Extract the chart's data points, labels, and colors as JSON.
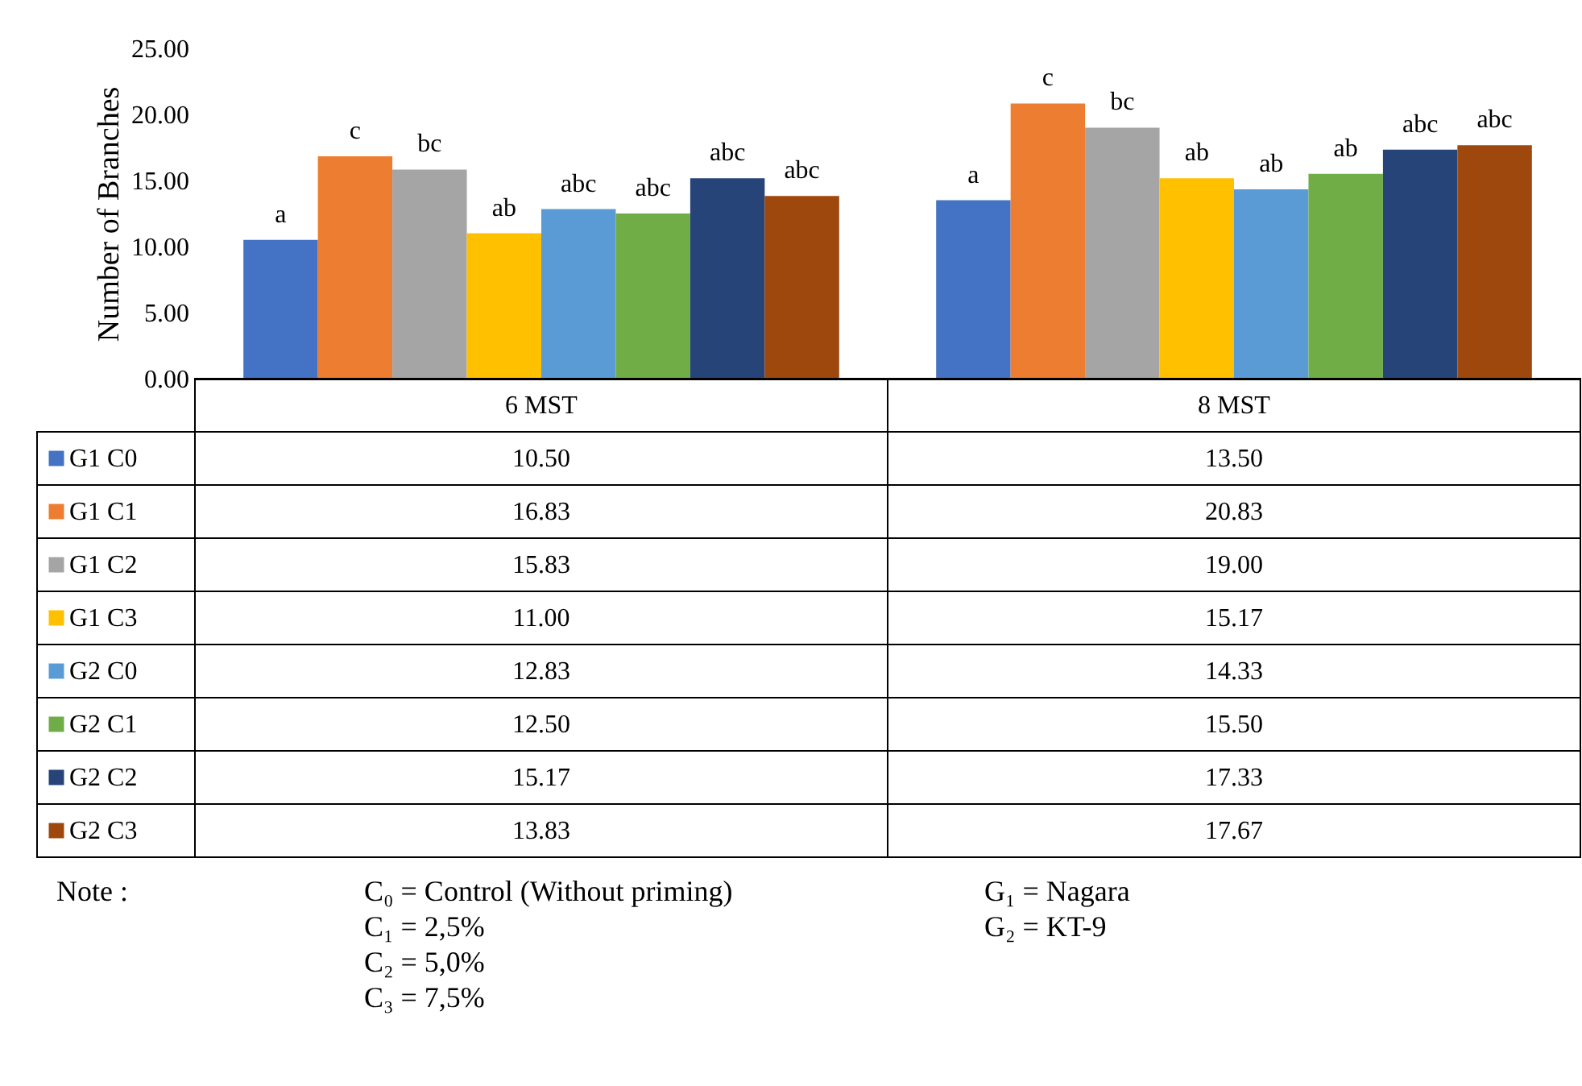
{
  "chart_data": {
    "type": "bar",
    "ylabel": "Number of Branches",
    "categories": [
      "6 MST",
      "8 MST"
    ],
    "series": [
      {
        "name": "G1 C0",
        "color": "#4472c4",
        "values": [
          10.5,
          13.5
        ],
        "value_labels": [
          "10.50",
          "13.50"
        ]
      },
      {
        "name": "G1 C1",
        "color": "#ed7d31",
        "values": [
          16.83,
          20.83
        ],
        "value_labels": [
          "16.83",
          "20.83"
        ]
      },
      {
        "name": "G1 C2",
        "color": "#a5a5a5",
        "values": [
          15.83,
          19.0
        ],
        "value_labels": [
          "15.83",
          "19.00"
        ]
      },
      {
        "name": "G1 C3",
        "color": "#ffc000",
        "values": [
          11.0,
          15.17
        ],
        "value_labels": [
          "11.00",
          "15.17"
        ]
      },
      {
        "name": "G2 C0",
        "color": "#5b9bd5",
        "values": [
          12.83,
          14.33
        ],
        "value_labels": [
          "12.83",
          "14.33"
        ]
      },
      {
        "name": "G2 C1",
        "color": "#70ad47",
        "values": [
          12.5,
          15.5
        ],
        "value_labels": [
          "12.50",
          "15.50"
        ]
      },
      {
        "name": "G2 C2",
        "color": "#264478",
        "values": [
          15.17,
          17.33
        ],
        "value_labels": [
          "15.17",
          "17.33"
        ]
      },
      {
        "name": "G2 C3",
        "color": "#9e480e",
        "values": [
          13.83,
          17.67
        ],
        "value_labels": [
          "13.83",
          "17.67"
        ]
      }
    ],
    "ylim": [
      0,
      25
    ],
    "yticks": [
      {
        "value": 0,
        "label": "0.00"
      },
      {
        "value": 5,
        "label": "5.00"
      },
      {
        "value": 10,
        "label": "10.00"
      },
      {
        "value": 15,
        "label": "15.00"
      },
      {
        "value": 20,
        "label": "20.00"
      },
      {
        "value": 25,
        "label": "25.00"
      }
    ],
    "legend": "bottom",
    "annotations": [
      "a",
      "c",
      "bc",
      "ab",
      "abc",
      "abc",
      "abc",
      "abc",
      "a",
      "c",
      "bc",
      "ab",
      "ab",
      "ab",
      "abc",
      "abc",
      "Note :",
      "C₀ = Control (Without priming)",
      "C₁ = 2,5%",
      "C₂ = 5,0%",
      "C₃ = 7,5%",
      "G₁ = Nagara",
      "G₂ = KT-9"
    ]
  }
}
